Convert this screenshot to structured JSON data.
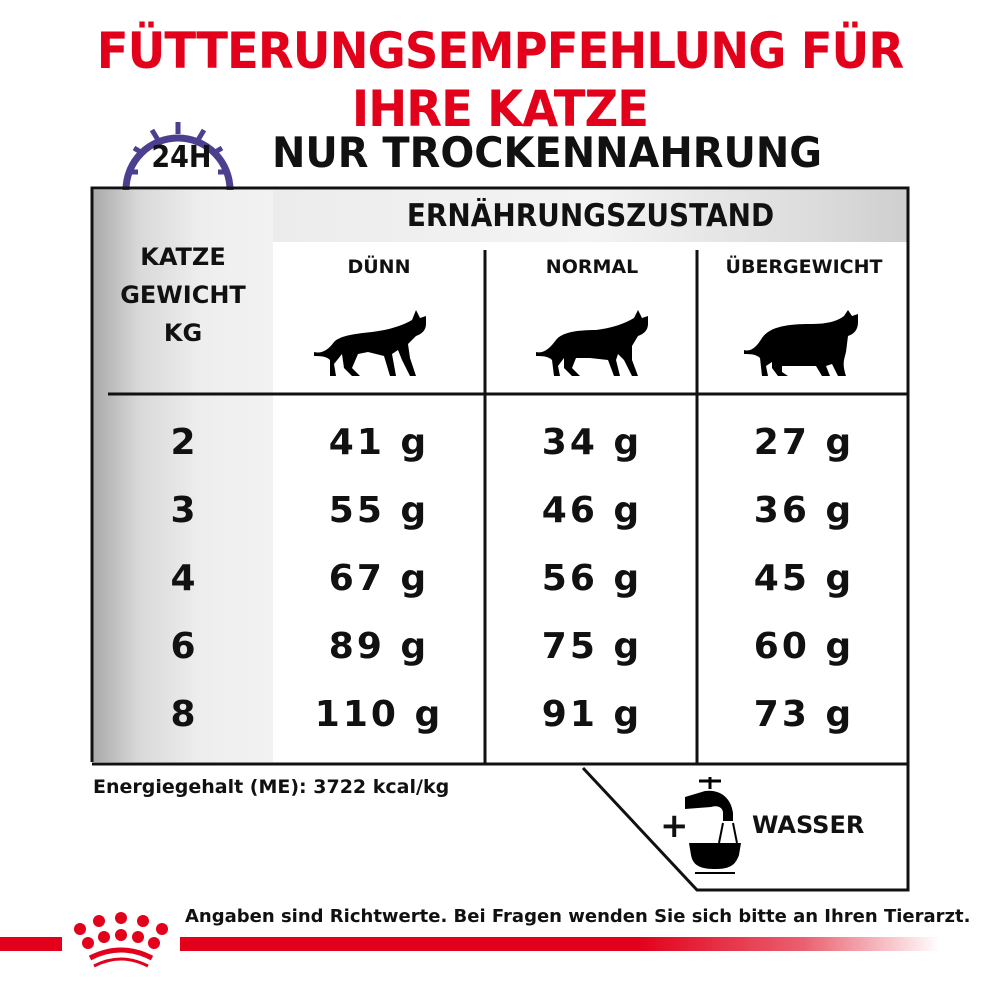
{
  "title": "FÜTTERUNGSEMPFEHLUNG FÜR IHRE KATZE",
  "subtitle": "NUR TROCKENNAHRUNG",
  "clock_label": "24H",
  "table": {
    "group_header": "ERNÄHRUNGSZUSTAND",
    "weight_header": [
      "KATZE",
      "GEWICHT",
      "KG"
    ],
    "columns": [
      "DÜNN",
      "NORMAL",
      "ÜBERGEWICHT"
    ],
    "rows": [
      {
        "weight": "2",
        "values": [
          "41 g",
          "34 g",
          "27 g"
        ]
      },
      {
        "weight": "3",
        "values": [
          "55 g",
          "46 g",
          "36 g"
        ]
      },
      {
        "weight": "4",
        "values": [
          "67 g",
          "56 g",
          "45 g"
        ]
      },
      {
        "weight": "6",
        "values": [
          "89 g",
          "75 g",
          "60 g"
        ]
      },
      {
        "weight": "8",
        "values": [
          "110 g",
          "91 g",
          "73 g"
        ]
      }
    ]
  },
  "energy": "Energiegehalt (ME): 3722 kcal/kg",
  "water": {
    "plus": "+",
    "label": "WASSER",
    "icon": "water-tap-bowl-icon"
  },
  "footer": "Angaben sind Richtwerte. Bei Fragen wenden Sie sich bitte an Ihren Tierarzt.",
  "logo_text": "Royal Canin",
  "colors": {
    "brand_red": "#e2001a",
    "clock_purple": "#4b3f8f"
  }
}
